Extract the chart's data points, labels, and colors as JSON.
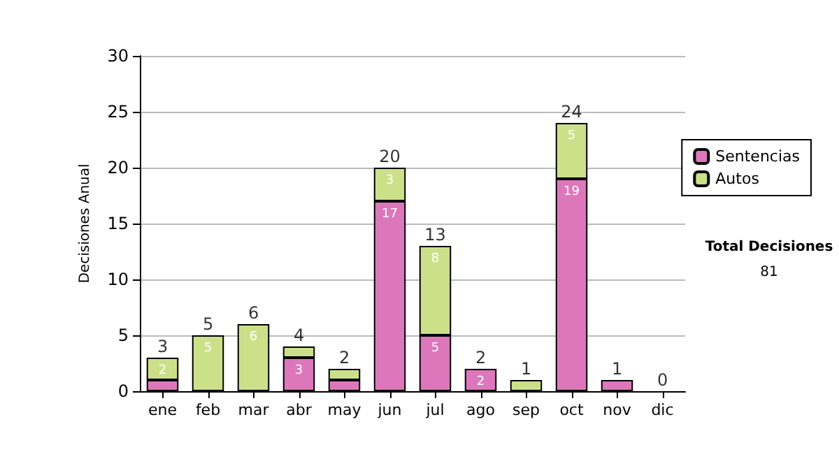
{
  "chart_data": {
    "type": "bar",
    "ylabel": "Decisiones Anual",
    "categories": [
      "ene",
      "feb",
      "mar",
      "abr",
      "may",
      "jun",
      "jul",
      "ago",
      "sep",
      "oct",
      "nov",
      "dic"
    ],
    "series": [
      {
        "name": "Sentencias",
        "color": "#dd77bb",
        "values": [
          1,
          0,
          0,
          3,
          1,
          17,
          5,
          2,
          0,
          19,
          1,
          0
        ],
        "value_labels": [
          null,
          null,
          null,
          "3",
          null,
          "17",
          "5",
          "2",
          null,
          "19",
          null,
          null
        ]
      },
      {
        "name": "Autos",
        "color": "#cce08a",
        "values": [
          2,
          5,
          6,
          1,
          1,
          3,
          8,
          0,
          1,
          5,
          0,
          0
        ],
        "value_labels": [
          "2",
          "5",
          "6",
          null,
          null,
          "3",
          "8",
          null,
          null,
          "5",
          null,
          null
        ]
      }
    ],
    "stacked": true,
    "totals": [
      "3",
      "5",
      "6",
      "4",
      "2",
      "20",
      "13",
      "2",
      "1",
      "24",
      "1",
      "0"
    ],
    "ylim": [
      0,
      30
    ],
    "yticks": [
      0,
      5,
      10,
      15,
      20,
      25,
      30
    ],
    "grid": "y",
    "legend": "right",
    "annotations": [
      "Total Decisiones",
      "81"
    ]
  }
}
